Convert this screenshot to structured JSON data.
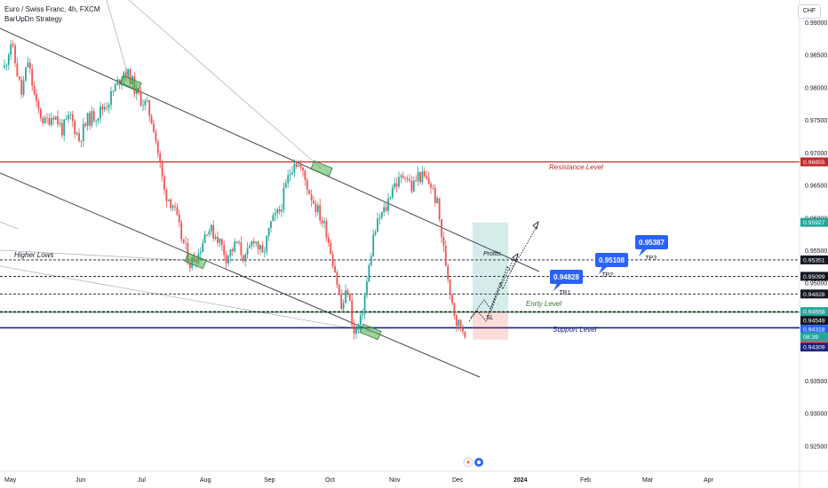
{
  "header": {
    "title": "Euro / Swiss Franc, 4h, FXCM",
    "strategy": "BarUpDn Strategy",
    "currency_button": "CHF"
  },
  "chart_data": {
    "type": "candlestick",
    "symbol": "EURCHF",
    "timeframe": "4h",
    "y_axis": {
      "range": [
        0.9185,
        0.9934
      ],
      "ticks": [
        "0.99000",
        "0.98500",
        "0.98000",
        "0.97500",
        "0.97000",
        "0.96500",
        "0.96000",
        "0.95500",
        "0.95000",
        "0.94500",
        "0.94000",
        "0.93500",
        "0.93000",
        "0.92500",
        "0.92000"
      ]
    },
    "x_axis": {
      "ticks": [
        "May",
        "Jun",
        "Jul",
        "Aug",
        "Sep",
        "Oct",
        "Nov",
        "Dec",
        "2024",
        "Feb",
        "Mar",
        "Apr"
      ]
    },
    "price_path": [
      [
        0,
        0.983
      ],
      [
        3,
        0.987
      ],
      [
        8,
        0.979
      ],
      [
        11,
        0.984
      ],
      [
        15,
        0.977
      ],
      [
        19,
        0.9745
      ],
      [
        23,
        0.976
      ],
      [
        27,
        0.9735
      ],
      [
        31,
        0.9755
      ],
      [
        35,
        0.972
      ],
      [
        39,
        0.975
      ],
      [
        44,
        0.976
      ],
      [
        49,
        0.978
      ],
      [
        52,
        0.98
      ],
      [
        56,
        0.9825
      ],
      [
        59,
        0.9815
      ],
      [
        62,
        0.979
      ],
      [
        67,
        0.977
      ],
      [
        70,
        0.974
      ],
      [
        72,
        0.97
      ],
      [
        75,
        0.964
      ],
      [
        79,
        0.962
      ],
      [
        83,
        0.957
      ],
      [
        87,
        0.953
      ],
      [
        91,
        0.9545
      ],
      [
        95,
        0.9585
      ],
      [
        100,
        0.957
      ],
      [
        104,
        0.954
      ],
      [
        109,
        0.956
      ],
      [
        113,
        0.9535
      ],
      [
        117,
        0.957
      ],
      [
        121,
        0.954
      ],
      [
        125,
        0.959
      ],
      [
        129,
        0.961
      ],
      [
        133,
        0.966
      ],
      [
        136,
        0.969
      ],
      [
        139,
        0.9675
      ],
      [
        143,
        0.964
      ],
      [
        147,
        0.961
      ],
      [
        151,
        0.958
      ],
      [
        155,
        0.952
      ],
      [
        158,
        0.946
      ],
      [
        161,
        0.949
      ],
      [
        164,
        0.942
      ],
      [
        167,
        0.944
      ],
      [
        170,
        0.95
      ],
      [
        173,
        0.957
      ],
      [
        176,
        0.96
      ],
      [
        179,
        0.9615
      ],
      [
        182,
        0.965
      ],
      [
        185,
        0.9655
      ],
      [
        188,
        0.967
      ],
      [
        191,
        0.9645
      ],
      [
        194,
        0.9665
      ],
      [
        197,
        0.966
      ],
      [
        200,
        0.965
      ],
      [
        203,
        0.962
      ],
      [
        206,
        0.955
      ],
      [
        209,
        0.949
      ],
      [
        212,
        0.944
      ],
      [
        215,
        0.943
      ],
      [
        217,
        0.9425
      ]
    ],
    "levels": [
      {
        "name": "Resistance Level",
        "price": 0.96855,
        "color": "#c62828"
      },
      {
        "name": "Support Level",
        "price": 0.94309,
        "color": "#1a237e"
      },
      {
        "name": "Enrty Level",
        "price": 0.94549,
        "color": "#43a047"
      }
    ],
    "dashed_levels": [
      0.95351,
      0.95099,
      0.94828,
      0.94558,
      0.94549
    ],
    "price_labels": [
      {
        "text": "0.96855",
        "price": 0.96855,
        "bg": "#c62828",
        "fg": "#ffffff"
      },
      {
        "text": "0.95927",
        "price": 0.95927,
        "bg": "#26a69a",
        "fg": "#ffffff"
      },
      {
        "text": "0.95351",
        "price": 0.95351,
        "bg": "#131722",
        "fg": "#ffffff"
      },
      {
        "text": "0.95099",
        "price": 0.95099,
        "bg": "#131722",
        "fg": "#ffffff"
      },
      {
        "text": "0.94828",
        "price": 0.94828,
        "bg": "#131722",
        "fg": "#ffffff"
      },
      {
        "text": "0.94558",
        "price": 0.94558,
        "bg": "#26a69a",
        "fg": "#ffffff"
      },
      {
        "text": "0.94549",
        "price": 0.94549,
        "bg": "#131722",
        "fg": "#ffffff"
      },
      {
        "text": "0.94318",
        "price": 0.94318,
        "bg": "#2962ff",
        "fg": "#ffffff"
      },
      {
        "text": "0.94315",
        "price": 0.94315,
        "bg": "#ef5350",
        "fg": "#ffffff"
      },
      {
        "text": "0.94309",
        "price": 0.94309,
        "bg": "#1a237e",
        "fg": "#ffffff"
      },
      {
        "text": "08:39",
        "price": 0.94309,
        "bg": "#26a69a",
        "fg": "#ffffff"
      }
    ],
    "targets": [
      {
        "label": "0.94828",
        "tag": "TP1"
      },
      {
        "label": "0.95108",
        "tag": "TP2"
      },
      {
        "label": "0.95387",
        "tag": "TP3"
      }
    ],
    "annotations": {
      "higher_lows": "Higher Lows",
      "profits": "Profits",
      "stop_loss": "SL"
    }
  }
}
